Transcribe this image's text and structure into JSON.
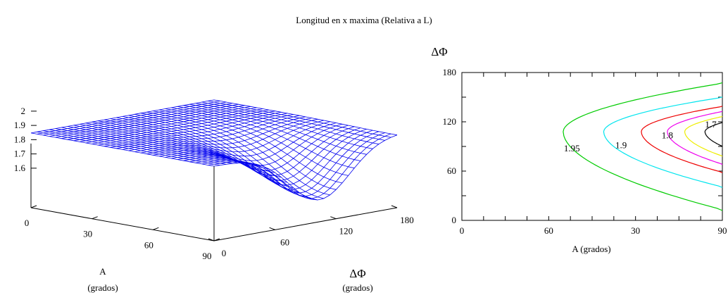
{
  "title": "Longitud en x maxima (Relativa a L)",
  "chart_data": [
    {
      "type": "surface",
      "x_label_line1": "A",
      "x_label_line2": "(grados)",
      "y_label": "ΔΦ",
      "y_label_units": "(grados)",
      "x_ticks": [
        "0",
        "30",
        "60",
        "90"
      ],
      "y_ticks": [
        "0",
        "60",
        "120",
        "180"
      ],
      "z_ticks": [
        "1.6",
        "1.7",
        "1.8",
        "1.9",
        "2"
      ],
      "x_range": [
        0,
        90
      ],
      "y_range": [
        0,
        180
      ],
      "z_range": [
        1.55,
        2.0
      ],
      "mesh_color": "#0000ee",
      "grid_size": [
        30,
        30
      ],
      "surface_model": {
        "plateau": 2.0,
        "minimum": 1.63,
        "minimum_at": {
          "A": 90,
          "dphi": 104
        },
        "description_free": true
      }
    },
    {
      "type": "contour",
      "x_label": "A  (grados)",
      "y_label": "ΔΦ",
      "x_ticks": [
        "0",
        "60",
        "30",
        "90"
      ],
      "y_ticks": [
        "0",
        "60",
        "120",
        "180"
      ],
      "x_range": [
        0,
        90
      ],
      "y_range": [
        0,
        180
      ],
      "levels": [
        {
          "value": "1.95",
          "color": "#00cc00",
          "x_min": 35,
          "y_center": 108,
          "half_height": 96,
          "label": "1.95",
          "label_pos": [
            38,
            84
          ]
        },
        {
          "value": "1.9",
          "color": "#00e5ee",
          "x_min": 49,
          "y_center": 108,
          "half_height": 68,
          "label": "1.9",
          "label_pos": [
            55,
            88
          ]
        },
        {
          "value": "1.85",
          "color": "#ee0000",
          "x_min": 62,
          "y_center": 108,
          "half_height": 50,
          "label": "",
          "label_pos": null
        },
        {
          "value": "1.8",
          "color": "#ee00ee",
          "x_min": 71,
          "y_center": 108,
          "half_height": 40,
          "label": "1.8",
          "label_pos": [
            71,
            100
          ]
        },
        {
          "value": "1.75",
          "color": "#eeee00",
          "x_min": 77,
          "y_center": 108,
          "half_height": 30,
          "label": "",
          "label_pos": null
        },
        {
          "value": "1.7",
          "color": "#000000",
          "x_min": 84,
          "y_center": 108,
          "half_height": 18,
          "label": "1.7",
          "label_pos": [
            86,
            113
          ]
        }
      ]
    }
  ]
}
